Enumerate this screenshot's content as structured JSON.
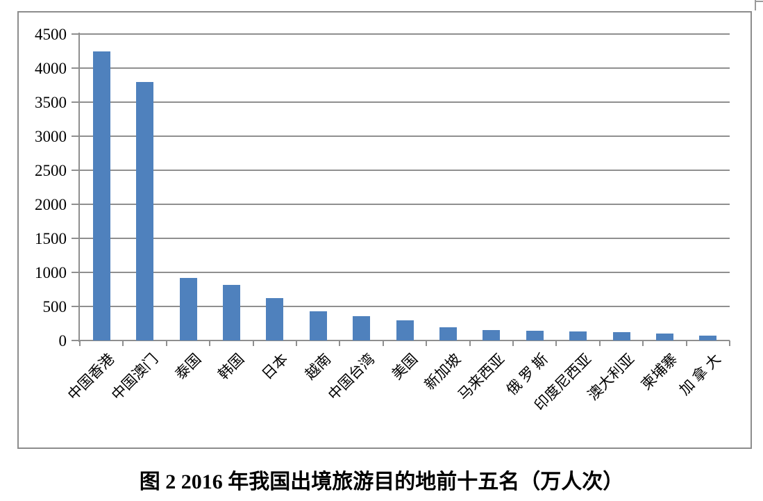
{
  "figure": {
    "caption": "图 2 2016 年我国出境旅游目的地前十五名（万人次）"
  },
  "chart_data": {
    "type": "bar",
    "title": "图 2 2016 年我国出境旅游目的地前十五名（万人次）",
    "categories": [
      "中国香港",
      "中国澳门",
      "泰国",
      "韩国",
      "日本",
      "越南",
      "中国台湾",
      "美国",
      "新加坡",
      "马来西亚",
      "俄 罗 斯",
      "印度尼西亚",
      "澳大利亚",
      "柬埔寨",
      "加 拿 大"
    ],
    "values": [
      4250,
      3800,
      920,
      815,
      620,
      425,
      360,
      300,
      195,
      150,
      140,
      130,
      120,
      100,
      70
    ],
    "unit": "万人次",
    "xlabel": "",
    "ylabel": "",
    "ylim": [
      0,
      4500
    ],
    "yticks": [
      0,
      500,
      1000,
      1500,
      2000,
      2500,
      3000,
      3500,
      4000,
      4500
    ],
    "grid": true,
    "legend": false,
    "legend_position": "none",
    "bar_color": "#4f81bd",
    "grid_color": "#8f8f8f",
    "axis_color": "#8f8f8f",
    "border_color": "#8c8c8c",
    "text_color": "#000000",
    "background": "#ffffff"
  }
}
